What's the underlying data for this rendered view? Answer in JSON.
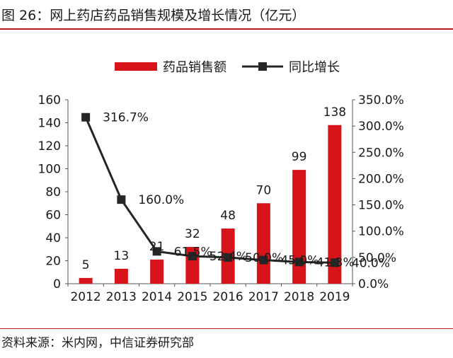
{
  "figure": {
    "title": "图 26：网上药店药品销售规模及增长情况（亿元）",
    "source": "资料来源：米内网，中信证券研究部"
  },
  "colors": {
    "bar": "#d7141a",
    "line": "#262626",
    "rule": "#b21c1c"
  },
  "chart_data": {
    "type": "bar",
    "categories": [
      "2012",
      "2013",
      "2014",
      "2015",
      "2016",
      "2017",
      "2018",
      "2019"
    ],
    "series": [
      {
        "name": "药品销售额",
        "type": "bar",
        "axis": "left",
        "values": [
          5,
          13,
          21,
          32,
          48,
          70,
          99,
          138
        ],
        "labels": [
          "5",
          "13",
          "21",
          "32",
          "48",
          "70",
          "99",
          "138"
        ]
      },
      {
        "name": "同比增长",
        "type": "line",
        "axis": "right",
        "marker": "square",
        "values": [
          316.7,
          160.0,
          61.5,
          52.4,
          50.0,
          45.0,
          41.3,
          40.0
        ],
        "labels": [
          "316.7%",
          "160.0%",
          "61.5%",
          "52.4%",
          "50.0%",
          "45.0%",
          "41.3%",
          "40.0%"
        ]
      }
    ],
    "ylim": [
      0,
      160
    ],
    "yticks": [
      "0",
      "20",
      "40",
      "60",
      "80",
      "100",
      "120",
      "140",
      "160"
    ],
    "y2lim": [
      0,
      350
    ],
    "y2ticks": [
      "0.0%",
      "50.0%",
      "100.0%",
      "150.0%",
      "200.0%",
      "250.0%",
      "300.0%",
      "350.0%"
    ],
    "legend": "top-center",
    "grid": false
  }
}
